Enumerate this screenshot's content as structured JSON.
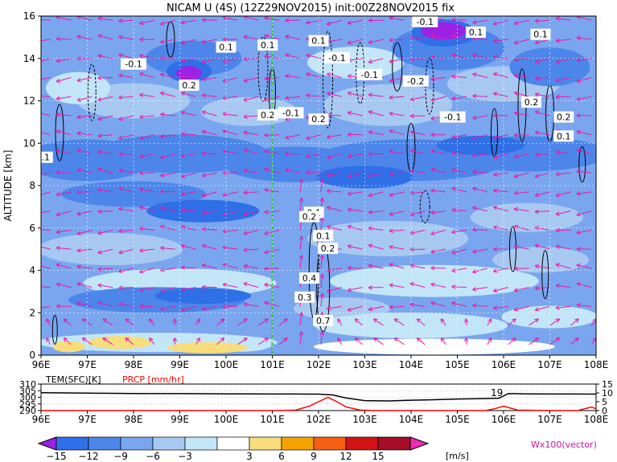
{
  "title": "NICAM U (4S) (12Z29NOV2015) init:00Z28NOV2015 fix",
  "chart_data": [
    {
      "type": "heatmap",
      "title": "NICAM U (4S) (12Z29NOV2015) init:00Z28NOV2015 fix",
      "ylabel": "ALTITUDE [km]",
      "x_ticks": [
        "96E",
        "97E",
        "98E",
        "99E",
        "100E",
        "101E",
        "102E",
        "103E",
        "104E",
        "105E",
        "106E",
        "107E",
        "108E"
      ],
      "y_ticks": [
        "0",
        "2",
        "4",
        "6",
        "8",
        "10",
        "12",
        "14",
        "16"
      ],
      "xlim": [
        96,
        108
      ],
      "ylim": [
        0,
        16
      ],
      "units": "[m/s]",
      "vector_label": "Wx100(vector)",
      "marker_lon": 101.0,
      "contour_labels": [
        {
          "text": "0.1",
          "lon": 100.0,
          "alt": 14.5
        },
        {
          "text": "0.1",
          "lon": 100.9,
          "alt": 14.6
        },
        {
          "text": "-0.1",
          "lon": 98.0,
          "alt": 13.7
        },
        {
          "text": "0.2",
          "lon": 99.2,
          "alt": 12.7
        },
        {
          "text": "0.1",
          "lon": 102.0,
          "alt": 14.8
        },
        {
          "text": "-0.1",
          "lon": 102.4,
          "alt": 14.0
        },
        {
          "text": "-0.1",
          "lon": 103.1,
          "alt": 13.2
        },
        {
          "text": "-0.2",
          "lon": 104.1,
          "alt": 12.9
        },
        {
          "text": "-0.1",
          "lon": 104.3,
          "alt": 15.7
        },
        {
          "text": "0.1",
          "lon": 105.4,
          "alt": 15.2
        },
        {
          "text": "0.1",
          "lon": 106.8,
          "alt": 15.1
        },
        {
          "text": "0.2",
          "lon": 106.6,
          "alt": 11.9
        },
        {
          "text": "0.2",
          "lon": 107.3,
          "alt": 11.2
        },
        {
          "text": "0.1",
          "lon": 107.3,
          "alt": 10.3
        },
        {
          "text": "-0.1",
          "lon": 104.9,
          "alt": 11.2
        },
        {
          "text": "0.2",
          "lon": 100.9,
          "alt": 11.3
        },
        {
          "text": "-0.1",
          "lon": 101.4,
          "alt": 11.4
        },
        {
          "text": "0.2",
          "lon": 102.0,
          "alt": 11.1
        },
        {
          "text": "0.1",
          "lon": 101.9,
          "alt": 6.7
        },
        {
          "text": "0.2",
          "lon": 101.8,
          "alt": 6.5
        },
        {
          "text": "0.1",
          "lon": 102.1,
          "alt": 5.6
        },
        {
          "text": "0.2",
          "lon": 102.2,
          "alt": 5.0
        },
        {
          "text": "0.4",
          "lon": 101.8,
          "alt": 3.6
        },
        {
          "text": "0.3",
          "lon": 101.7,
          "alt": 2.7
        },
        {
          "text": "0.7",
          "lon": 102.1,
          "alt": 1.6
        },
        {
          "text": ".1",
          "lon": 96.1,
          "alt": 9.3
        }
      ]
    },
    {
      "type": "line",
      "x_ticks": [
        "96E",
        "97E",
        "98E",
        "99E",
        "100E",
        "101E",
        "102E",
        "103E",
        "104E",
        "105E",
        "106E",
        "107E",
        "108E"
      ],
      "xlim": [
        96,
        108
      ],
      "series": [
        {
          "name": "TEM(SFC)[K]",
          "axis": "left",
          "color": "#000000",
          "x": [
            96.0,
            96.5,
            97.0,
            97.5,
            98.0,
            98.5,
            99.0,
            99.5,
            100.0,
            100.5,
            101.0,
            101.5,
            102.0,
            102.3,
            102.6,
            103.0,
            103.5,
            104.0,
            104.5,
            105.0,
            105.5,
            105.9,
            106.1,
            106.5,
            107.0,
            107.5,
            108.0
          ],
          "values": [
            303.5,
            303.3,
            303.2,
            303.0,
            302.9,
            302.8,
            302.8,
            302.7,
            302.6,
            302.6,
            302.5,
            302.5,
            302.4,
            301.8,
            299.5,
            297.5,
            297.3,
            297.8,
            298.2,
            298.7,
            299.0,
            299.3,
            302.8,
            302.6,
            302.5,
            302.5,
            302.4
          ]
        },
        {
          "name": "PRCP [mm/hr]",
          "axis": "right",
          "color": "#ff0000",
          "x": [
            96.0,
            101.0,
            101.5,
            101.8,
            102.0,
            102.2,
            102.4,
            102.6,
            102.9,
            103.2,
            105.6,
            105.8,
            106.0,
            106.3,
            107.0,
            107.6,
            107.9,
            108.0
          ],
          "values": [
            0.0,
            0.0,
            0.2,
            2.5,
            5.0,
            7.5,
            5.0,
            2.0,
            0.3,
            0.0,
            0.0,
            1.0,
            2.5,
            0.3,
            0.0,
            0.0,
            2.0,
            1.0
          ]
        }
      ],
      "left_ticks": [
        "290",
        "295",
        "300",
        "305",
        "310"
      ],
      "right_ticks": [
        "0",
        "5",
        "10",
        "15"
      ],
      "left_ylim": [
        290,
        310
      ],
      "right_ylim": [
        0,
        15
      ],
      "annotation": "19"
    }
  ],
  "colorbar": {
    "ticks": [
      "−15",
      "−12",
      "−9",
      "−6",
      "−3",
      "3",
      "6",
      "9",
      "12",
      "15"
    ],
    "colors": [
      "#9b22e5",
      "#2f6fe8",
      "#4d86ea",
      "#7aa6ef",
      "#a7c9f1",
      "#c2e6f8",
      "#ffffff",
      "#f7dd7c",
      "#f5a300",
      "#f46012",
      "#d21414",
      "#a60d27",
      "#ee2bb5"
    ],
    "unit": "[m/s]"
  }
}
